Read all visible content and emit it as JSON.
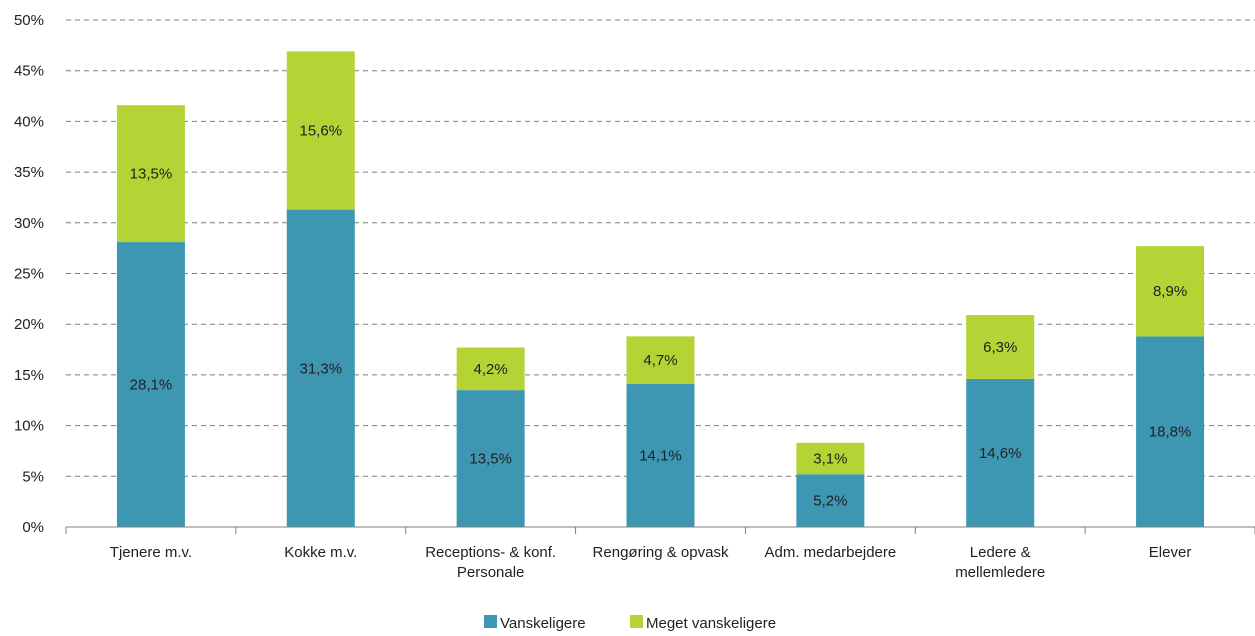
{
  "chart_data": {
    "type": "bar",
    "stacked": true,
    "categories": [
      "Tjenere m.v.",
      "Kokke m.v.",
      "Receptions- & konf. Personale",
      "Rengøring & opvask",
      "Adm. medarbejdere",
      "Ledere & mellemledere",
      "Elever"
    ],
    "category_lines": [
      [
        "Tjenere m.v."
      ],
      [
        "Kokke m.v."
      ],
      [
        "Receptions- & konf.",
        "Personale"
      ],
      [
        "Rengøring & opvask"
      ],
      [
        "Adm. medarbejdere"
      ],
      [
        "Ledere &",
        "mellemledere"
      ],
      [
        "Elever"
      ]
    ],
    "series": [
      {
        "name": "Vanskeligere",
        "color": "#3d97b2",
        "values": [
          28.1,
          31.3,
          13.5,
          14.1,
          5.2,
          14.6,
          18.8
        ],
        "labels": [
          "28,1%",
          "31,3%",
          "13,5%",
          "14,1%",
          "5,2%",
          "14,6%",
          "18,8%"
        ]
      },
      {
        "name": "Meget vanskeligere",
        "color": "#b4d334",
        "values": [
          13.5,
          15.6,
          4.2,
          4.7,
          3.1,
          6.3,
          8.9
        ],
        "labels": [
          "13,5%",
          "15,6%",
          "4,2%",
          "4,7%",
          "3,1%",
          "6,3%",
          "8,9%"
        ]
      }
    ],
    "ylim": [
      0,
      50
    ],
    "yticks": [
      0,
      5,
      10,
      15,
      20,
      25,
      30,
      35,
      40,
      45,
      50
    ],
    "ytick_labels": [
      "0%",
      "5%",
      "10%",
      "15%",
      "20%",
      "25%",
      "30%",
      "35%",
      "40%",
      "45%",
      "50%"
    ],
    "grid": "dashed horizontal",
    "legend_position": "bottom-center",
    "title": "",
    "xlabel": "",
    "ylabel": ""
  }
}
